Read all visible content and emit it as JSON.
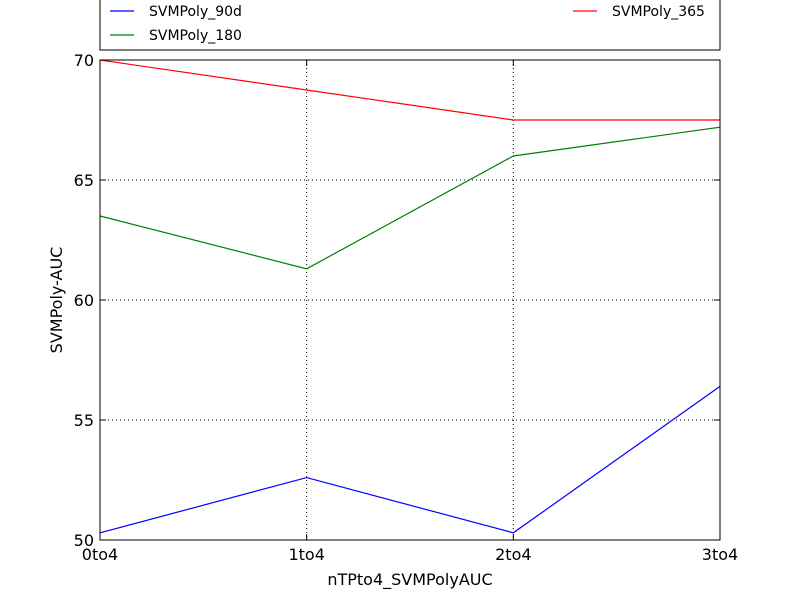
{
  "chart_data": {
    "type": "line",
    "categories": [
      "0to4",
      "1to4",
      "2to4",
      "3to4"
    ],
    "series": [
      {
        "name": "SVMPoly_90d",
        "color": "#0000ff",
        "values": [
          50.3,
          52.6,
          50.3,
          56.4
        ]
      },
      {
        "name": "SVMPoly_180",
        "color": "#008000",
        "values": [
          63.5,
          61.3,
          66.0,
          67.2
        ]
      },
      {
        "name": "SVMPoly_365",
        "color": "#ff0000",
        "values": [
          70.0,
          68.75,
          67.5,
          67.5
        ]
      }
    ],
    "xlabel": "nTPto4_SVMPolyAUC",
    "ylabel": "SVMPoly-AUC",
    "ylim": [
      50,
      70
    ],
    "yticks": [
      50,
      55,
      60,
      65,
      70
    ],
    "grid": true,
    "legend_position": "top"
  }
}
